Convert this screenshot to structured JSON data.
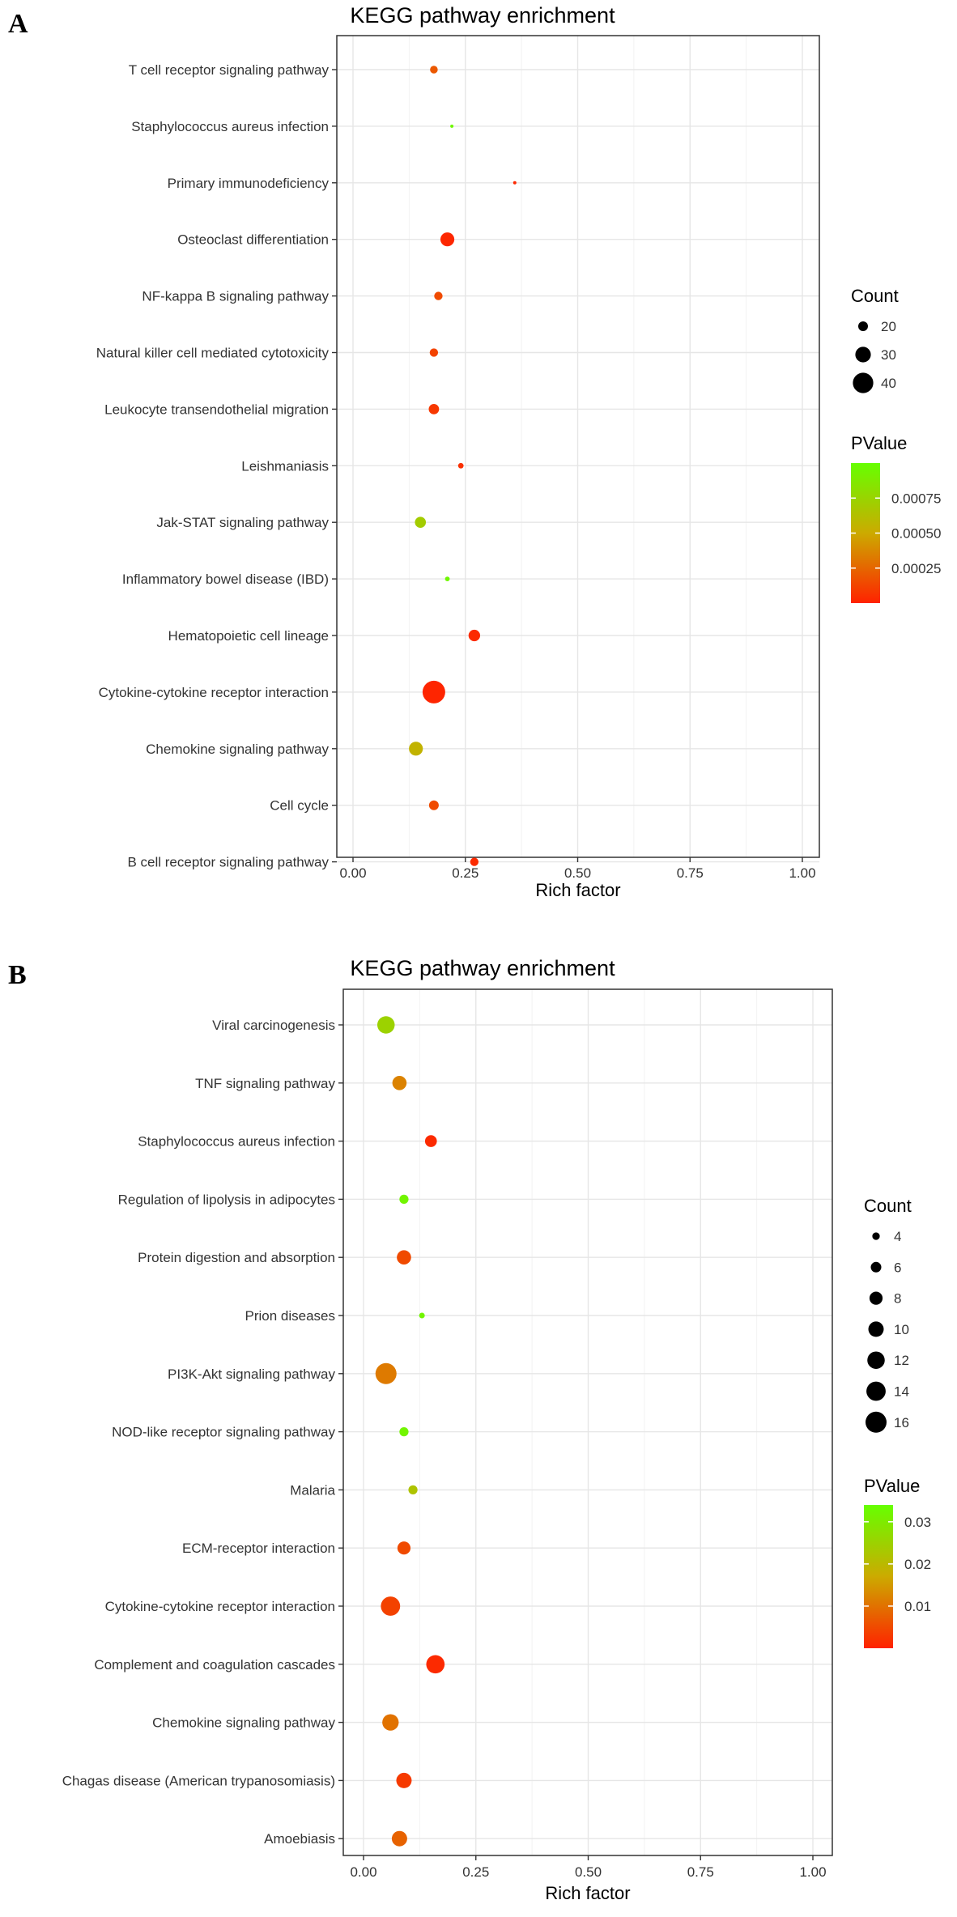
{
  "chart_data": [
    {
      "panel": "A",
      "type": "scatter",
      "title": "KEGG pathway enrichment",
      "xlabel": "Rich factor",
      "ylabel": "",
      "xlim": [
        0,
        1
      ],
      "x_ticks": [
        "0.00",
        "0.25",
        "0.50",
        "0.75",
        "1.00"
      ],
      "grid": true,
      "legend_position": "right",
      "size_legend": {
        "title": "Count",
        "values": [
          20,
          30,
          40
        ]
      },
      "color_legend": {
        "title": "PValue",
        "ticks": [
          0.00075,
          0.0005,
          0.00025
        ],
        "tick_labels": [
          "0.00075",
          "0.00050",
          "0.00025"
        ],
        "range": [
          0,
          0.001
        ],
        "low_color": "#ff2200",
        "high_color": "#66ff00"
      },
      "points": [
        {
          "term": "T cell receptor signaling pathway",
          "rich_factor": 0.18,
          "count": 17,
          "pvalue": 0.0002
        },
        {
          "term": "Staphylococcus aureus infection",
          "rich_factor": 0.22,
          "count": 9,
          "pvalue": 0.00095
        },
        {
          "term": "Primary immunodeficiency",
          "rich_factor": 0.36,
          "count": 11,
          "pvalue": 2e-05
        },
        {
          "term": "Osteoclast differentiation",
          "rich_factor": 0.21,
          "count": 27,
          "pvalue": 2e-05
        },
        {
          "term": "NF-kappa B signaling pathway",
          "rich_factor": 0.19,
          "count": 18,
          "pvalue": 0.00015
        },
        {
          "term": "Natural killer cell mediated cytotoxicity",
          "rich_factor": 0.18,
          "count": 18,
          "pvalue": 0.00012
        },
        {
          "term": "Leukocyte transendothelial migration",
          "rich_factor": 0.18,
          "count": 21,
          "pvalue": 8e-05
        },
        {
          "term": "Leishmaniasis",
          "rich_factor": 0.24,
          "count": 14,
          "pvalue": 5e-05
        },
        {
          "term": "Jak-STAT signaling pathway",
          "rich_factor": 0.15,
          "count": 22,
          "pvalue": 0.0007
        },
        {
          "term": "Inflammatory bowel disease (IBD)",
          "rich_factor": 0.21,
          "count": 13,
          "pvalue": 0.00095
        },
        {
          "term": "Hematopoietic cell lineage",
          "rich_factor": 0.27,
          "count": 23,
          "pvalue": 3e-05
        },
        {
          "term": "Cytokine-cytokine receptor interaction",
          "rich_factor": 0.18,
          "count": 45,
          "pvalue": 1e-05
        },
        {
          "term": "Chemokine signaling pathway",
          "rich_factor": 0.14,
          "count": 27,
          "pvalue": 0.00055
        },
        {
          "term": "Cell cycle",
          "rich_factor": 0.18,
          "count": 20,
          "pvalue": 0.00015
        },
        {
          "term": "B cell receptor signaling pathway",
          "rich_factor": 0.27,
          "count": 18,
          "pvalue": 3e-05
        }
      ]
    },
    {
      "panel": "B",
      "type": "scatter",
      "title": "KEGG pathway enrichment",
      "xlabel": "Rich factor",
      "ylabel": "",
      "xlim": [
        0,
        1
      ],
      "x_ticks": [
        "0.00",
        "0.25",
        "0.50",
        "0.75",
        "1.00"
      ],
      "grid": true,
      "legend_position": "right",
      "size_legend": {
        "title": "Count",
        "values": [
          4,
          6,
          8,
          10,
          12,
          14,
          16
        ]
      },
      "color_legend": {
        "title": "PValue",
        "ticks": [
          0.03,
          0.02,
          0.01
        ],
        "tick_labels": [
          "0.03",
          "0.02",
          "0.01"
        ],
        "range": [
          0,
          0.034
        ],
        "low_color": "#ff2200",
        "high_color": "#66ff00"
      },
      "points": [
        {
          "term": "Viral carcinogenesis",
          "rich_factor": 0.05,
          "count": 12,
          "pvalue": 0.025
        },
        {
          "term": "TNF signaling pathway",
          "rich_factor": 0.08,
          "count": 9,
          "pvalue": 0.012
        },
        {
          "term": "Staphylococcus aureus infection",
          "rich_factor": 0.15,
          "count": 7,
          "pvalue": 0.001
        },
        {
          "term": "Regulation of lipolysis in adipocytes",
          "rich_factor": 0.09,
          "count": 5,
          "pvalue": 0.032
        },
        {
          "term": "Protein digestion and absorption",
          "rich_factor": 0.09,
          "count": 9,
          "pvalue": 0.005
        },
        {
          "term": "Prion diseases",
          "rich_factor": 0.13,
          "count": 3,
          "pvalue": 0.032
        },
        {
          "term": "PI3K-Akt signaling pathway",
          "rich_factor": 0.05,
          "count": 16,
          "pvalue": 0.011
        },
        {
          "term": "NOD-like receptor signaling pathway",
          "rich_factor": 0.09,
          "count": 5,
          "pvalue": 0.032
        },
        {
          "term": "Malaria",
          "rich_factor": 0.11,
          "count": 5,
          "pvalue": 0.022
        },
        {
          "term": "ECM-receptor interaction",
          "rich_factor": 0.09,
          "count": 8,
          "pvalue": 0.005
        },
        {
          "term": "Cytokine-cytokine receptor interaction",
          "rich_factor": 0.06,
          "count": 14,
          "pvalue": 0.004
        },
        {
          "term": "Complement and coagulation cascades",
          "rich_factor": 0.16,
          "count": 13,
          "pvalue": 0.001
        },
        {
          "term": "Chemokine signaling pathway",
          "rich_factor": 0.06,
          "count": 11,
          "pvalue": 0.01
        },
        {
          "term": "Chagas disease (American trypanosomiasis)",
          "rich_factor": 0.09,
          "count": 10,
          "pvalue": 0.003
        },
        {
          "term": "Amoebiasis",
          "rich_factor": 0.08,
          "count": 10,
          "pvalue": 0.008
        }
      ]
    }
  ]
}
